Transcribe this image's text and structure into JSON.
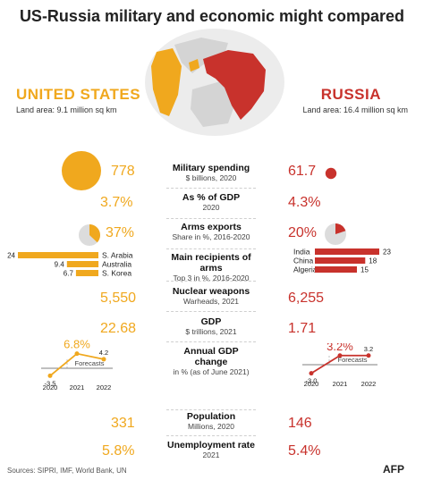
{
  "title": "US-Russia military and economic might compared",
  "countries": {
    "us": {
      "name": "UNITED STATES",
      "area": "Land area: 9.1 million sq km"
    },
    "ru": {
      "name": "RUSSIA",
      "area": "Land area: 16.4 million sq km"
    }
  },
  "colors": {
    "us": "#f0a81e",
    "ru": "#c8322c",
    "map_grey": "#d4d4d4"
  },
  "rows": [
    {
      "label": "Military spending",
      "sub": "$ billions, 2020",
      "us": "778",
      "ru": "61.7"
    },
    {
      "label": "As % of GDP",
      "sub": "2020",
      "us": "3.7%",
      "ru": "4.3%"
    },
    {
      "label": "Arms exports",
      "sub": "Share in %, 2016-2020",
      "us": "37%",
      "ru": "20%"
    },
    {
      "label": "Main recipients of arms",
      "sub": "Top 3 in %, 2016-2020",
      "us": "",
      "ru": ""
    },
    {
      "label": "Nuclear weapons",
      "sub": "Warheads, 2021",
      "us": "5,550",
      "ru": "6,255"
    },
    {
      "label": "GDP",
      "sub": "$ trillions, 2021",
      "us": "22.68",
      "ru": "1.71"
    },
    {
      "label": "Annual GDP change",
      "sub": "in % (as of June 2021)",
      "us": "",
      "ru": ""
    },
    {
      "label": "Population",
      "sub": "Millions, 2020",
      "us": "331",
      "ru": "146"
    },
    {
      "label": "Unemployment rate",
      "sub": "2021",
      "us": "5.8%",
      "ru": "5.4%"
    }
  ],
  "chart_data": [
    {
      "type": "pie",
      "title": "Military spending",
      "us": 778,
      "ru": 61.7
    },
    {
      "type": "pie",
      "title": "Arms exports",
      "us": 37,
      "ru": 20
    },
    {
      "type": "bar",
      "title": "Main recipients of arms",
      "country": "United States",
      "categories": [
        "S. Arabia",
        "Australia",
        "S. Korea"
      ],
      "values": [
        24,
        9.4,
        6.7
      ],
      "value_labels": [
        "24",
        "9.4",
        "6.7"
      ]
    },
    {
      "type": "bar",
      "title": "Main recipients of arms",
      "country": "Russia",
      "categories": [
        "India",
        "China",
        "Algeria"
      ],
      "values": [
        23,
        18,
        15
      ],
      "value_labels": [
        "23",
        "18",
        "15"
      ]
    },
    {
      "type": "line",
      "title": "Annual GDP change",
      "country": "United States",
      "x": [
        "2020",
        "2021",
        "2022"
      ],
      "values": [
        -3.5,
        6.8,
        4.2
      ],
      "value_labels": [
        "-3.5",
        "6.8%",
        "4.2"
      ],
      "annotation": "Forecasts"
    },
    {
      "type": "line",
      "title": "Annual GDP change",
      "country": "Russia",
      "x": [
        "2020",
        "2021",
        "2022"
      ],
      "values": [
        -3.0,
        3.2,
        3.2
      ],
      "value_labels": [
        "-3.0",
        "3.2%",
        "3.2"
      ],
      "annotation": "Forecasts"
    }
  ],
  "source": "Sources: SIPRI, IMF, World Bank, UN",
  "credit": "AFP"
}
